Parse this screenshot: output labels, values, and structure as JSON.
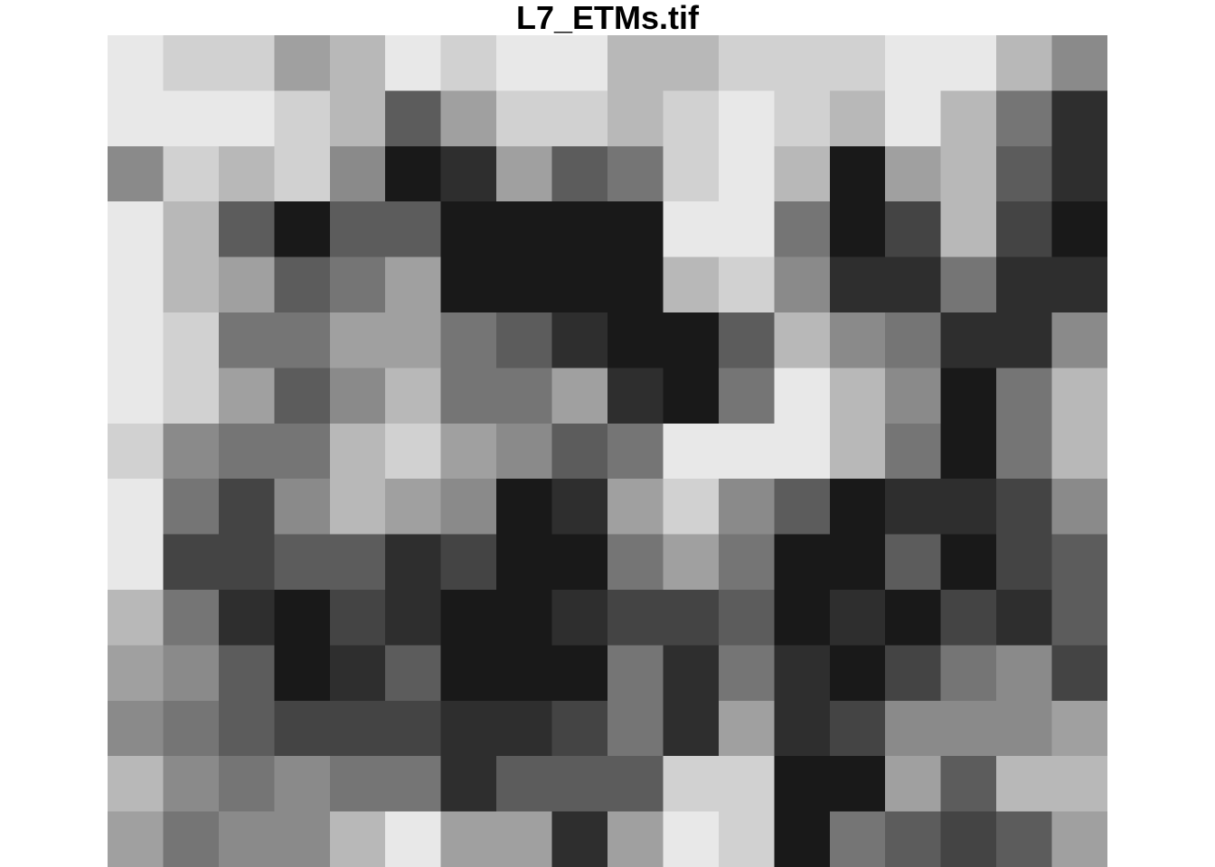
{
  "chart_data": {
    "type": "heatmap",
    "title": "L7_ETMs.tif",
    "xlabel": "",
    "ylabel": "",
    "color_scale": "grayscale",
    "levels": [
      "#191919",
      "#2e2e2e",
      "#444444",
      "#5c5c5c",
      "#757575",
      "#8a8a8a",
      "#a0a0a0",
      "#b8b8b8",
      "#d1d1d1",
      "#e8e8e8"
    ],
    "values": [
      [
        9,
        8,
        8,
        6,
        7,
        9,
        8,
        9,
        9,
        7,
        7,
        8,
        8,
        8,
        9,
        9,
        7,
        5
      ],
      [
        9,
        9,
        9,
        8,
        7,
        3,
        6,
        8,
        8,
        7,
        8,
        9,
        8,
        7,
        9,
        7,
        4,
        1
      ],
      [
        5,
        8,
        7,
        8,
        5,
        0,
        1,
        6,
        3,
        4,
        8,
        9,
        7,
        0,
        6,
        7,
        3,
        1
      ],
      [
        9,
        7,
        3,
        0,
        3,
        3,
        0,
        0,
        0,
        0,
        9,
        9,
        4,
        0,
        2,
        7,
        2,
        0
      ],
      [
        9,
        7,
        6,
        3,
        4,
        6,
        0,
        0,
        0,
        0,
        7,
        8,
        5,
        1,
        1,
        4,
        1,
        1
      ],
      [
        9,
        8,
        4,
        4,
        6,
        6,
        4,
        3,
        1,
        0,
        0,
        3,
        7,
        5,
        4,
        1,
        1,
        5
      ],
      [
        9,
        8,
        6,
        3,
        5,
        7,
        4,
        4,
        6,
        1,
        0,
        4,
        9,
        7,
        5,
        0,
        4,
        7
      ],
      [
        8,
        5,
        4,
        4,
        7,
        8,
        6,
        5,
        3,
        4,
        9,
        9,
        9,
        7,
        4,
        0,
        4,
        7
      ],
      [
        9,
        4,
        2,
        5,
        7,
        6,
        5,
        0,
        1,
        6,
        8,
        5,
        3,
        0,
        1,
        1,
        2,
        5
      ],
      [
        9,
        2,
        2,
        3,
        3,
        1,
        2,
        0,
        0,
        4,
        6,
        4,
        0,
        0,
        3,
        0,
        2,
        3
      ],
      [
        7,
        4,
        1,
        0,
        2,
        1,
        0,
        0,
        1,
        2,
        2,
        3,
        0,
        1,
        0,
        2,
        1,
        3
      ],
      [
        6,
        5,
        3,
        0,
        1,
        3,
        0,
        0,
        0,
        4,
        1,
        4,
        1,
        0,
        2,
        4,
        5,
        2
      ],
      [
        5,
        4,
        3,
        2,
        2,
        2,
        1,
        1,
        2,
        4,
        1,
        6,
        1,
        2,
        5,
        5,
        5,
        6
      ],
      [
        7,
        5,
        4,
        5,
        4,
        4,
        1,
        3,
        3,
        3,
        8,
        8,
        0,
        0,
        6,
        3,
        7,
        7
      ],
      [
        6,
        4,
        5,
        5,
        7,
        9,
        6,
        6,
        1,
        6,
        9,
        8,
        0,
        4,
        3,
        2,
        3,
        6
      ]
    ]
  }
}
